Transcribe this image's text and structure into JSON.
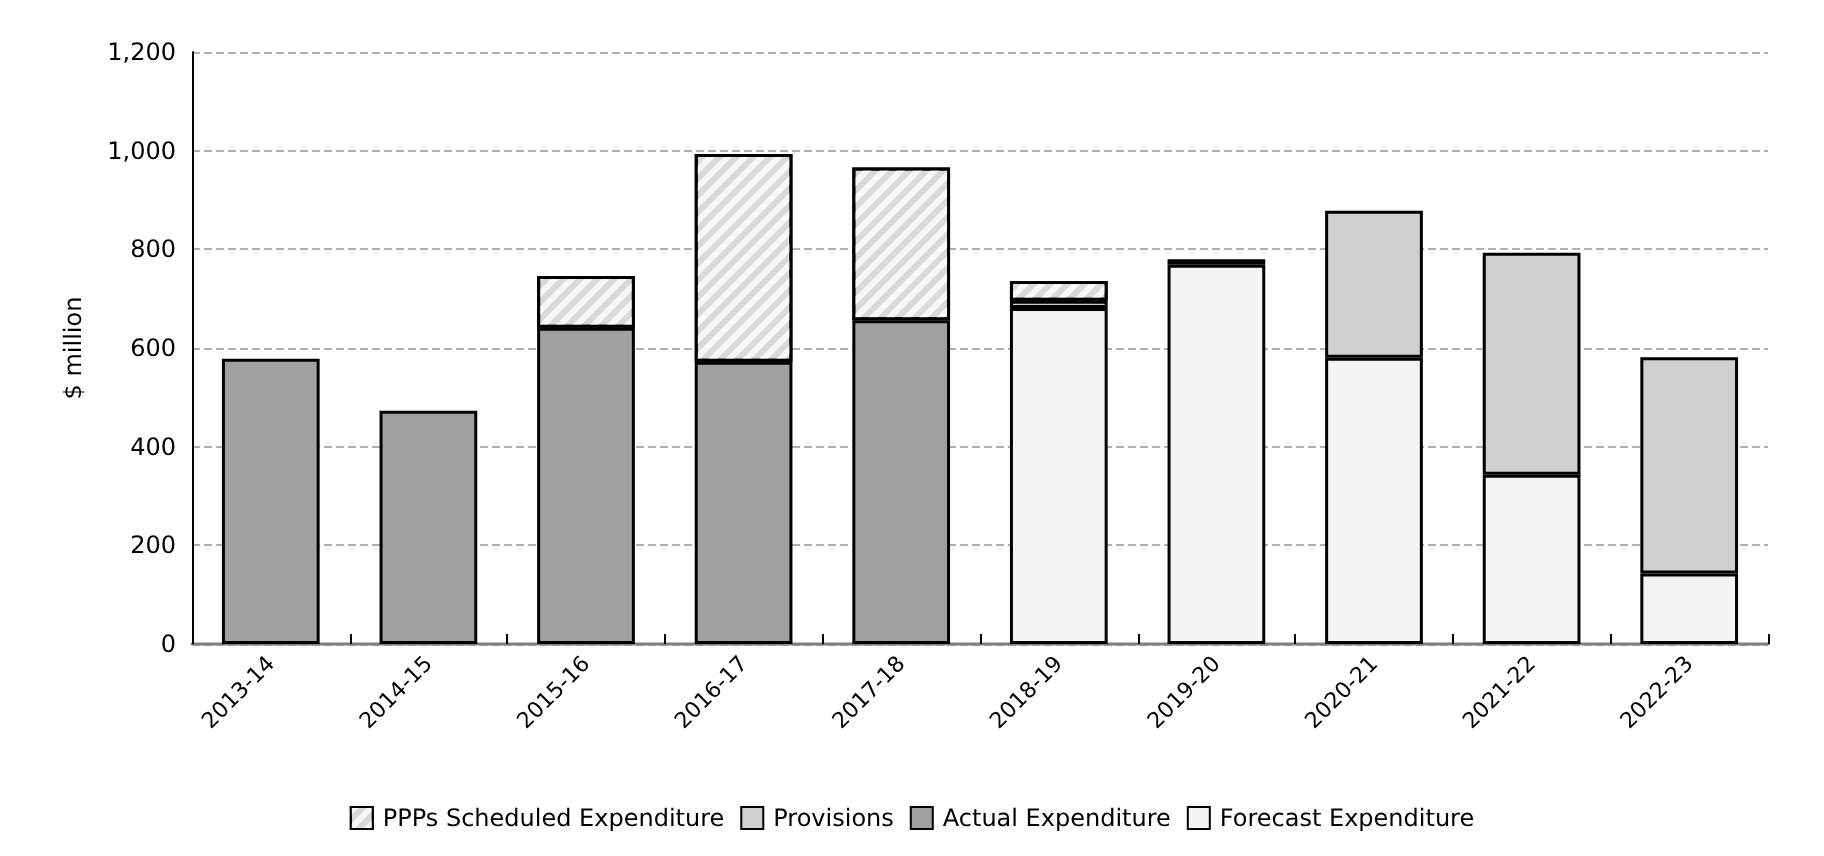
{
  "chart_data": {
    "type": "bar",
    "stacked": true,
    "ylabel": "$ million",
    "categories": [
      "2013-14",
      "2014-15",
      "2015-16",
      "2016-17",
      "2017-18",
      "2018-19",
      "2019-20",
      "2020-21",
      "2021-22",
      "2022-23"
    ],
    "series": [
      {
        "name": "Forecast Expenditure",
        "color": "#f4f4f4",
        "values": [
          null,
          null,
          null,
          null,
          null,
          681,
          769,
          580,
          343,
          143
        ]
      },
      {
        "name": "Actual Expenditure",
        "color": "#a0a0a0",
        "values": [
          578,
          473,
          641,
          572,
          656,
          null,
          null,
          null,
          null,
          null
        ]
      },
      {
        "name": "Provisions",
        "color": "#d0d0d0",
        "values": [
          null,
          null,
          null,
          null,
          null,
          15,
          11,
          298,
          450,
          438
        ]
      },
      {
        "name": "PPPs Scheduled Expenditure",
        "color": "#d9d9d9",
        "values": [
          null,
          null,
          105,
          421,
          310,
          40,
          null,
          null,
          null,
          null
        ]
      }
    ],
    "ylim": [
      0,
      1200
    ],
    "yticks": [
      0,
      200,
      400,
      600,
      800,
      {
        "value": 1000,
        "label": "1,000"
      },
      {
        "value": 1200,
        "label": "1,200"
      }
    ],
    "grid": "y",
    "legend": "bottom"
  }
}
